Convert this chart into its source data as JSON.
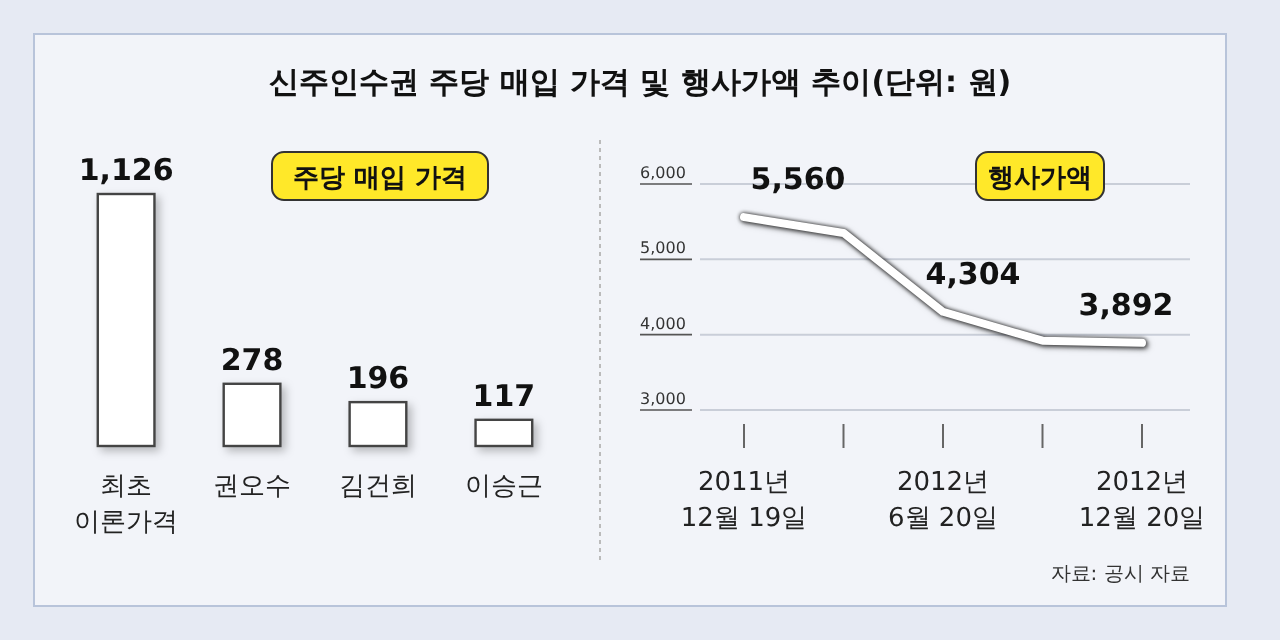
{
  "chart_data": [
    {
      "type": "bar",
      "title": "신주인수권 주당 매입 가격 및 행사가액 추이(단위: 원)",
      "subtitle": "주당 매입 가격",
      "categories": [
        "최초\n이론가격",
        "권오수",
        "김건희",
        "이승근"
      ],
      "values": [
        1126,
        278,
        196,
        117
      ],
      "color": "#ffffff",
      "value_labels": [
        "1,126",
        "278",
        "196",
        "117"
      ]
    },
    {
      "type": "line",
      "title": "행사가액",
      "categories": [
        "2011년\n12월 19일",
        null,
        "2012년\n6월 20일",
        null,
        "2012년\n12월 20일"
      ],
      "series": [
        {
          "color": "#ffffff",
          "values": [
            5560,
            5350,
            4304,
            3920,
            3892
          ],
          "value_labels": [
            "5,560",
            null,
            "4,304",
            null,
            "3,892"
          ]
        }
      ],
      "ylim": [
        3000,
        6000
      ],
      "yticks": [
        {
          "value": 3000,
          "label": "3,000"
        },
        {
          "value": 4000,
          "label": "4,000"
        },
        {
          "value": 5000,
          "label": "5,000"
        },
        {
          "value": 6000,
          "label": "6,000"
        }
      ],
      "grid": "y",
      "annotations": [
        "자료: 공시 자료"
      ]
    }
  ]
}
